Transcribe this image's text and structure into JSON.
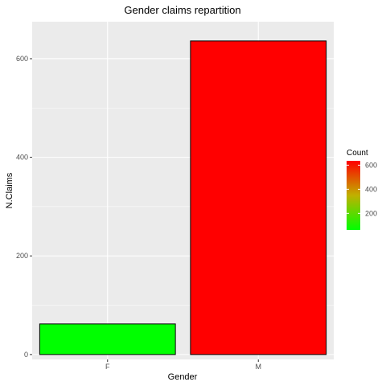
{
  "chart_data": {
    "type": "bar",
    "title": "Gender claims repartition",
    "xlabel": "Gender",
    "ylabel": "N.Claims",
    "categories": [
      "F",
      "M"
    ],
    "values": [
      62,
      636
    ],
    "ylim": [
      -10,
      675
    ],
    "yticks": [
      0,
      200,
      400,
      600
    ],
    "bar_colors": [
      "#00ff00",
      "#ff0000"
    ],
    "grid": true,
    "background": "#ebebeb",
    "gridline_color": "#ffffff",
    "legend": {
      "title": "Count",
      "position": "right",
      "labels": [
        "200",
        "400",
        "600"
      ],
      "values": [
        200,
        400,
        600
      ],
      "range": [
        62,
        636
      ],
      "low_color": "#00ff00",
      "high_color": "#ff0000"
    }
  }
}
